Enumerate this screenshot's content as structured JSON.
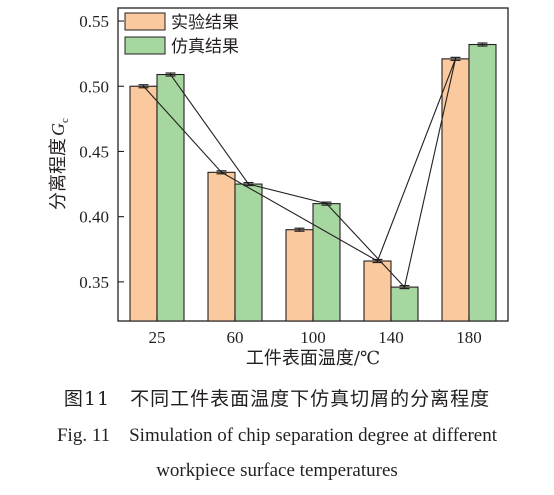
{
  "chart_data": {
    "type": "bar",
    "categories": [
      "25",
      "60",
      "100",
      "140",
      "180"
    ],
    "series": [
      {
        "name": "实验结果",
        "values": [
          0.5,
          0.434,
          0.39,
          0.366,
          0.521
        ],
        "color": "#fac99d"
      },
      {
        "name": "仿真结果",
        "values": [
          0.509,
          0.425,
          0.41,
          0.346,
          0.532
        ],
        "color": "#a6d7a0"
      }
    ],
    "xlabel": "工件表面温度/℃",
    "ylabel": "分离程度",
    "ylabel_symbol": "G",
    "ylabel_subscript": "c",
    "ylim": [
      0.32,
      0.56
    ],
    "yticks": [
      "0.35",
      "0.40",
      "0.45",
      "0.50",
      "0.55"
    ],
    "ytick_values": [
      0.35,
      0.4,
      0.45,
      0.5,
      0.55
    ],
    "grid": false,
    "legend_position": "top-left",
    "connector_line_order": [
      [
        0,
        "实验结果"
      ],
      [
        1,
        "实验结果"
      ],
      [
        3,
        "实验结果"
      ],
      [
        4,
        "实验结果"
      ],
      [
        3,
        "仿真结果"
      ],
      [
        2,
        "仿真结果"
      ],
      [
        1,
        "仿真结果"
      ],
      [
        0,
        "仿真结果"
      ]
    ]
  },
  "caption": {
    "cn": "图11　不同工件表面温度下仿真切屑的分离程度",
    "en_line1": "Fig. 11　Simulation of chip separation degree at different",
    "en_line2": "workpiece surface temperatures"
  }
}
